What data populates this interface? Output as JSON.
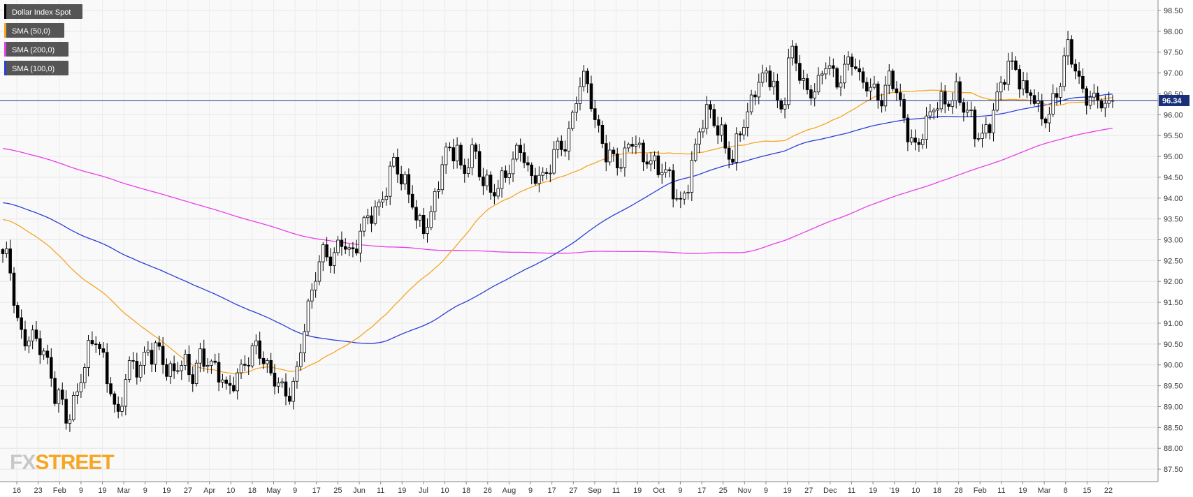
{
  "chart_data": {
    "type": "candlestick",
    "instrument": "Dollar Index Spot",
    "last_price": 96.34,
    "last_price_label": "96.34",
    "ylim": [
      87.2,
      98.75
    ],
    "y_ticks": [
      "87.50",
      "88.00",
      "88.50",
      "89.00",
      "89.50",
      "90.00",
      "90.50",
      "91.00",
      "91.50",
      "92.00",
      "92.50",
      "93.00",
      "93.50",
      "94.00",
      "94.50",
      "95.00",
      "95.50",
      "96.00",
      "96.50",
      "97.00",
      "97.50",
      "98.00",
      "98.50"
    ],
    "x_ticks": [
      "16",
      "23",
      "Feb",
      "9",
      "19",
      "Mar",
      "9",
      "19",
      "27",
      "Apr",
      "10",
      "18",
      "May",
      "9",
      "17",
      "25",
      "Jun",
      "11",
      "19",
      "Jul",
      "10",
      "18",
      "26",
      "Aug",
      "9",
      "17",
      "27",
      "Sep",
      "11",
      "19",
      "Oct",
      "9",
      "17",
      "25",
      "Nov",
      "9",
      "19",
      "27",
      "Dec",
      "11",
      "19",
      "'19",
      "10",
      "18",
      "28",
      "Feb",
      "11",
      "19",
      "Mar",
      "8",
      "15",
      "22"
    ],
    "grid": true,
    "legend_position": "top-left",
    "series": [
      {
        "name": "Dollar Index Spot",
        "color": "#000000"
      },
      {
        "name": "SMA (50,0)",
        "color": "#f5a623"
      },
      {
        "name": "SMA (200,0)",
        "color": "#e83ee8"
      },
      {
        "name": "SMA (100,0)",
        "color": "#2a3fd6"
      }
    ],
    "price_path": [
      92.55,
      92.45,
      91.5,
      90.8,
      90.7,
      90.85,
      90.5,
      90.3,
      89.8,
      89.2,
      89.3,
      88.75,
      89.1,
      89.4,
      89.9,
      90.3,
      90.55,
      90.3,
      89.8,
      89.4,
      88.75,
      89.5,
      89.95,
      89.85,
      89.8,
      90.35,
      90.3,
      90.6,
      90.1,
      89.8,
      89.8,
      89.95,
      89.9,
      89.65,
      90.3,
      90.25,
      90.1,
      89.9,
      89.6,
      89.25,
      89.5,
      89.8,
      90.15,
      90.3,
      90.55,
      90.15,
      89.8,
      89.6,
      89.5,
      89.4,
      89.4,
      89.8,
      90.6,
      91.2,
      91.8,
      92.4,
      92.75,
      92.6,
      92.85,
      93.1,
      92.7,
      92.55,
      93.0,
      93.4,
      93.65,
      93.8,
      94.1,
      94.4,
      94.9,
      94.4,
      94.2,
      94.0,
      93.5,
      93.4,
      93.5,
      93.9,
      94.5,
      95.0,
      95.0,
      95.2,
      94.5,
      95.1,
      95.3,
      94.5,
      94.3,
      93.95,
      94.2,
      94.5,
      94.8,
      95.1,
      95.3,
      94.75,
      94.3,
      94.5,
      94.4,
      94.75,
      95.3,
      95.35,
      95.3,
      95.8,
      96.5,
      96.8,
      96.6,
      95.9,
      95.6,
      95.1,
      95.0,
      94.7,
      94.8,
      95.3,
      95.4,
      95.1,
      95.05,
      94.9,
      94.7,
      94.5,
      94.4,
      93.95,
      93.9,
      94.4,
      95.0,
      95.6,
      95.9,
      96.0,
      95.6,
      95.5,
      95.2,
      95.0,
      95.7,
      95.8,
      96.1,
      96.6,
      96.8,
      97.0,
      96.9,
      96.1,
      96.5,
      97.6,
      97.2,
      96.6,
      96.5,
      96.6,
      96.9,
      97.4,
      97.1,
      96.7,
      96.8,
      97.2,
      97.3,
      96.9,
      96.9,
      96.7,
      96.5,
      96.2,
      96.8,
      96.7,
      96.3,
      95.8,
      95.5,
      95.2,
      95.6,
      95.8,
      96.1,
      96.3,
      96.3,
      96.5,
      96.7,
      96.2,
      96.0,
      95.5,
      95.3,
      95.6,
      96.0,
      96.6,
      97.0,
      97.2,
      97.1,
      96.6,
      96.4,
      96.6,
      96.2,
      96.0,
      96.1,
      96.4,
      96.7,
      97.6,
      97.3,
      96.9,
      96.6,
      96.5,
      96.4,
      96.3,
      95.95,
      96.34
    ]
  },
  "logo": {
    "fx": "FX",
    "street": "STREET"
  }
}
